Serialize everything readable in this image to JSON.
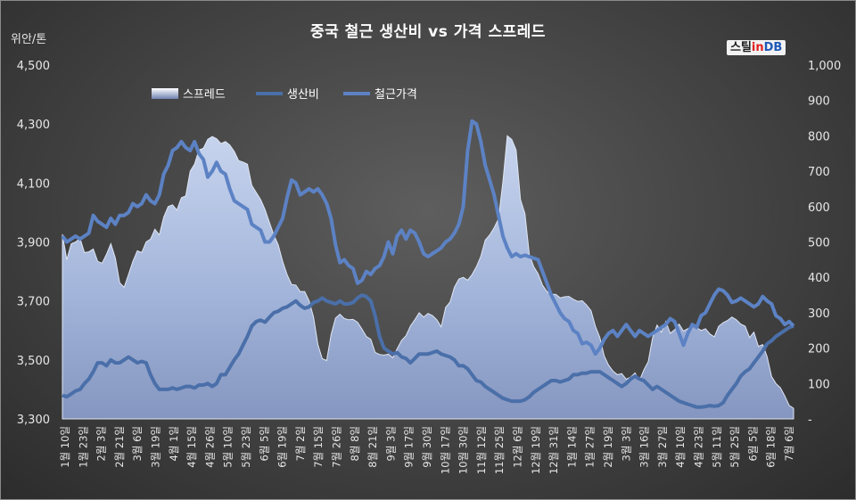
{
  "title": "중국 철근 생산비 vs 가격 스프레드",
  "unit_label": "위안/톤",
  "logo": {
    "part1": "스틸",
    "part2": "in",
    "part3": "DB"
  },
  "colors": {
    "spread_fill": "#a6b9dc",
    "spread_stroke": "#dfe6f4",
    "cost_line": "#4a6fa9",
    "price_line": "#5c82c4"
  },
  "chart_data": {
    "type": "line",
    "title": "중국 철근 생산비 vs 가격 스프레드",
    "ylabel": "위안/톤",
    "ylim": [
      3300,
      4500
    ],
    "y2lim": [
      0,
      1000
    ],
    "y_ticks": [
      "3,300",
      "3,500",
      "3,700",
      "3,900",
      "4,100",
      "4,300",
      "4,500"
    ],
    "y2_ticks": [
      "-",
      "100",
      "200",
      "300",
      "400",
      "500",
      "600",
      "700",
      "800",
      "900",
      "1,000"
    ],
    "x_labels": [
      "1월 10일",
      "1월 23일",
      "2월 3일",
      "2월 21일",
      "3월 6일",
      "3월 19일",
      "4월 1일",
      "4월 15일",
      "4월 26일",
      "5월 10일",
      "5월 23일",
      "6월 5일",
      "6월 19일",
      "7월 2일",
      "7월 15일",
      "7월 26일",
      "8월 8일",
      "8월 21일",
      "9월 3일",
      "9월 17일",
      "9월 30일",
      "10월 17일",
      "10월 30일",
      "11월 12일",
      "11월 25일",
      "12월 6일",
      "12월 19일",
      "12월 31일",
      "1월 14일",
      "1월 27일",
      "2월 19일",
      "3월 3일",
      "3월 16일",
      "3월 27일",
      "4월 10일",
      "4월 23일",
      "5월 11일",
      "5월 25일",
      "6월 5일",
      "6월 18일",
      "7월 6일"
    ],
    "legend_position": "top-left",
    "series": [
      {
        "name": "스프레드",
        "axis": "right",
        "style": "area",
        "values": [
          522,
          450,
          495,
          500,
          510,
          470,
          472,
          480,
          445,
          440,
          465,
          495,
          455,
          385,
          372,
          408,
          445,
          475,
          470,
          500,
          508,
          536,
          520,
          570,
          600,
          605,
          590,
          625,
          630,
          700,
          720,
          760,
          765,
          790,
          798,
          792,
          778,
          784,
          774,
          756,
          730,
          726,
          720,
          660,
          640,
          620,
          592,
          555,
          520,
          492,
          445,
          408,
          380,
          378,
          360,
          360,
          334,
          288,
          210,
          170,
          165,
          238,
          285,
          296,
          284,
          280,
          281,
          273,
          254,
          233,
          225,
          188,
          182,
          180,
          183,
          173,
          198,
          222,
          235,
          262,
          280,
          300,
          288,
          298,
          292,
          280,
          260,
          315,
          330,
          372,
          395,
          400,
          392,
          408,
          430,
          460,
          505,
          520,
          540,
          565,
          670,
          800,
          790,
          760,
          620,
          580,
          465,
          430,
          410,
          378,
          360,
          352,
          352,
          342,
          345,
          346,
          338,
          332,
          334,
          322,
          306,
          262,
          230,
          178,
          152,
          135,
          125,
          128,
          112,
          118,
          130,
          108,
          138,
          162,
          230,
          265,
          245,
          275,
          242,
          252,
          268,
          248,
          255,
          262,
          258,
          250,
          255,
          240,
          232,
          262,
          272,
          278,
          288,
          280,
          268,
          262,
          230,
          245,
          205,
          210,
          175,
          120,
          100,
          88,
          65,
          38,
          30
        ]
      },
      {
        "name": "생산비",
        "axis": "left",
        "values": [
          3380,
          3375,
          3385,
          3395,
          3400,
          3420,
          3435,
          3460,
          3490,
          3490,
          3480,
          3500,
          3490,
          3490,
          3500,
          3510,
          3500,
          3490,
          3495,
          3490,
          3450,
          3420,
          3400,
          3400,
          3400,
          3405,
          3400,
          3405,
          3410,
          3410,
          3405,
          3415,
          3415,
          3420,
          3410,
          3420,
          3450,
          3450,
          3475,
          3500,
          3520,
          3550,
          3580,
          3615,
          3630,
          3635,
          3628,
          3645,
          3660,
          3665,
          3675,
          3680,
          3690,
          3700,
          3685,
          3675,
          3680,
          3695,
          3700,
          3710,
          3700,
          3695,
          3690,
          3700,
          3690,
          3690,
          3695,
          3710,
          3720,
          3715,
          3700,
          3650,
          3580,
          3540,
          3530,
          3520,
          3525,
          3510,
          3505,
          3490,
          3505,
          3520,
          3520,
          3520,
          3525,
          3530,
          3520,
          3515,
          3510,
          3500,
          3480,
          3480,
          3470,
          3450,
          3430,
          3425,
          3410,
          3400,
          3390,
          3380,
          3370,
          3365,
          3360,
          3360,
          3360,
          3365,
          3375,
          3390,
          3400,
          3410,
          3420,
          3430,
          3430,
          3425,
          3430,
          3435,
          3450,
          3450,
          3455,
          3455,
          3460,
          3460,
          3460,
          3450,
          3440,
          3430,
          3420,
          3410,
          3420,
          3435,
          3445,
          3435,
          3430,
          3415,
          3400,
          3410,
          3400,
          3390,
          3380,
          3370,
          3360,
          3355,
          3350,
          3345,
          3340,
          3340,
          3342,
          3345,
          3343,
          3345,
          3355,
          3380,
          3400,
          3420,
          3445,
          3460,
          3470,
          3490,
          3510,
          3530,
          3555,
          3565,
          3580,
          3590,
          3600,
          3610,
          3615
        ]
      },
      {
        "name": "철근가격",
        "axis": "left",
        "values": [
          3920,
          3900,
          3910,
          3920,
          3910,
          3920,
          3930,
          3990,
          3970,
          3960,
          3950,
          3980,
          3960,
          3990,
          3990,
          4000,
          4030,
          4020,
          4030,
          4060,
          4040,
          4030,
          4060,
          4130,
          4160,
          4210,
          4220,
          4240,
          4220,
          4210,
          4240,
          4200,
          4180,
          4120,
          4140,
          4170,
          4140,
          4130,
          4080,
          4040,
          4030,
          4020,
          4010,
          3960,
          3950,
          3940,
          3900,
          3900,
          3920,
          3950,
          3980,
          4050,
          4110,
          4100,
          4060,
          4070,
          4080,
          4070,
          4080,
          4060,
          4030,
          3980,
          3890,
          3830,
          3840,
          3820,
          3810,
          3760,
          3770,
          3800,
          3790,
          3810,
          3820,
          3850,
          3900,
          3860,
          3920,
          3940,
          3910,
          3940,
          3930,
          3900,
          3860,
          3850,
          3860,
          3870,
          3880,
          3900,
          3910,
          3930,
          3960,
          4020,
          4210,
          4310,
          4300,
          4240,
          4160,
          4110,
          4060,
          3990,
          3920,
          3880,
          3850,
          3860,
          3850,
          3855,
          3850,
          3845,
          3840,
          3800,
          3760,
          3720,
          3690,
          3660,
          3640,
          3630,
          3600,
          3590,
          3555,
          3560,
          3550,
          3520,
          3540,
          3570,
          3590,
          3600,
          3580,
          3600,
          3620,
          3600,
          3580,
          3600,
          3590,
          3580,
          3590,
          3600,
          3610,
          3620,
          3640,
          3630,
          3590,
          3550,
          3590,
          3620,
          3610,
          3650,
          3660,
          3690,
          3720,
          3740,
          3735,
          3720,
          3695,
          3700,
          3710,
          3700,
          3690,
          3680,
          3690,
          3715,
          3700,
          3690,
          3650,
          3640,
          3620,
          3630,
          3615
        ]
      }
    ]
  }
}
